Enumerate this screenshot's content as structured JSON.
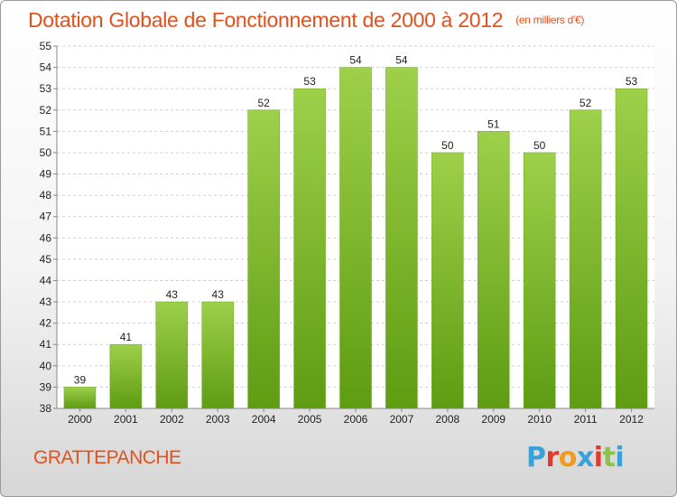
{
  "header": {
    "title": "Dotation Globale de Fonctionnement de 2000 à 2012",
    "unit": "(en milliers d'€)"
  },
  "footer": {
    "commune": "GRATTEPANCHE",
    "logo_text": "Proxiti",
    "logo_colors": [
      "#3aa0d8",
      "#e23a2c",
      "#f29a1d",
      "#3aa0d8",
      "#e23a2c",
      "#8bc34a",
      "#3aa0d8"
    ]
  },
  "chart_data": {
    "type": "bar",
    "categories": [
      "2000",
      "2001",
      "2002",
      "2003",
      "2004",
      "2005",
      "2006",
      "2007",
      "2008",
      "2009",
      "2010",
      "2011",
      "2012"
    ],
    "values": [
      39,
      41,
      43,
      43,
      52,
      53,
      54,
      54,
      50,
      51,
      50,
      52,
      53
    ],
    "title": "Dotation Globale de Fonctionnement de 2000 à 2012",
    "ylim": [
      38,
      55
    ],
    "yticks": [
      38,
      39,
      40,
      41,
      42,
      43,
      44,
      45,
      46,
      47,
      48,
      49,
      50,
      51,
      52,
      53,
      54,
      55
    ],
    "grid": true,
    "bar_color_top": "#9ed04a",
    "bar_color_bottom": "#5e9c12"
  }
}
